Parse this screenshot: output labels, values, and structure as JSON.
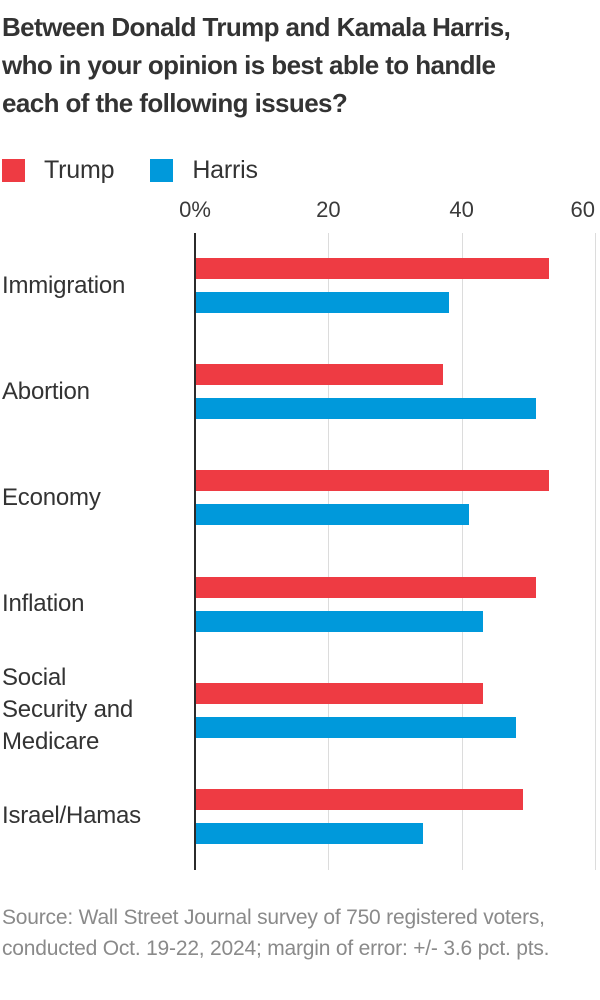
{
  "title": {
    "lines": [
      "Between Donald Trump and Kamala Harris,",
      "who in your opinion is best able to handle",
      "each of the following issues?"
    ]
  },
  "legend": {
    "items": [
      {
        "label": "Trump",
        "color": "#ee3b43"
      },
      {
        "label": "Harris",
        "color": "#0099db"
      }
    ]
  },
  "chart_data": {
    "type": "bar",
    "orientation": "horizontal",
    "title": "Between Donald Trump and Kamala Harris, who in your opinion is best able to handle each of the following issues?",
    "categories": [
      "Immigration",
      "Abortion",
      "Economy",
      "Inflation",
      "Social Security and Medicare",
      "Israel/Hamas"
    ],
    "series": [
      {
        "name": "Trump",
        "color": "#ee3b43",
        "values": [
          53,
          37,
          53,
          51,
          43,
          49
        ]
      },
      {
        "name": "Harris",
        "color": "#0099db",
        "values": [
          38,
          51,
          41,
          43,
          48,
          34
        ]
      }
    ],
    "xlim": [
      0,
      60
    ],
    "x_ticks": [
      {
        "value": 0,
        "label": "0%"
      },
      {
        "value": 20,
        "label": "20"
      },
      {
        "value": 40,
        "label": "40"
      },
      {
        "value": 60,
        "label": "60"
      }
    ],
    "grid": true,
    "legend_position": "top-left",
    "xlabel": "",
    "ylabel": "",
    "axis_color": "#2b2b2b",
    "gridline_color": "#dcdcdc"
  },
  "category_label_lines": [
    [
      "Immigration"
    ],
    [
      "Abortion"
    ],
    [
      "Economy"
    ],
    [
      "Inflation"
    ],
    [
      "Social",
      "Security and",
      "Medicare"
    ],
    [
      "Israel/Hamas"
    ]
  ],
  "source_note": "Source: Wall Street Journal survey of 750 registered voters, conducted Oct. 19-22, 2024; margin of error: +/- 3.6 pct. pts."
}
